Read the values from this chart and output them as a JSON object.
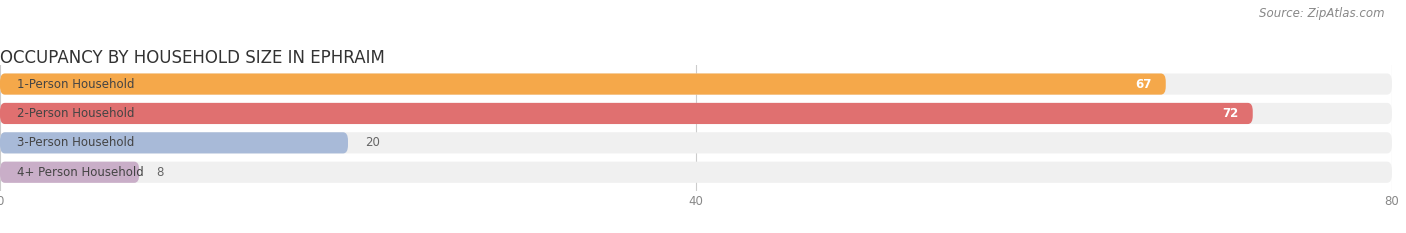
{
  "title": "OCCUPANCY BY HOUSEHOLD SIZE IN EPHRAIM",
  "source": "Source: ZipAtlas.com",
  "categories": [
    "1-Person Household",
    "2-Person Household",
    "3-Person Household",
    "4+ Person Household"
  ],
  "values": [
    67,
    72,
    20,
    8
  ],
  "bar_colors": [
    "#F5A84A",
    "#E07070",
    "#A8BAD8",
    "#C9AEC8"
  ],
  "label_colors": [
    "#555555",
    "#555555",
    "#555555",
    "#555555"
  ],
  "value_colors": [
    "#ffffff",
    "#ffffff",
    "#555555",
    "#555555"
  ],
  "xlim": [
    0,
    80
  ],
  "xticks": [
    0,
    40,
    80
  ],
  "title_fontsize": 12,
  "source_fontsize": 8.5,
  "label_fontsize": 8.5,
  "value_fontsize": 8.5,
  "background_color": "#ffffff",
  "bar_height": 0.72,
  "bar_gap": 0.28,
  "pill_bg_color": "#f0f0f0",
  "grid_color": "#cccccc"
}
